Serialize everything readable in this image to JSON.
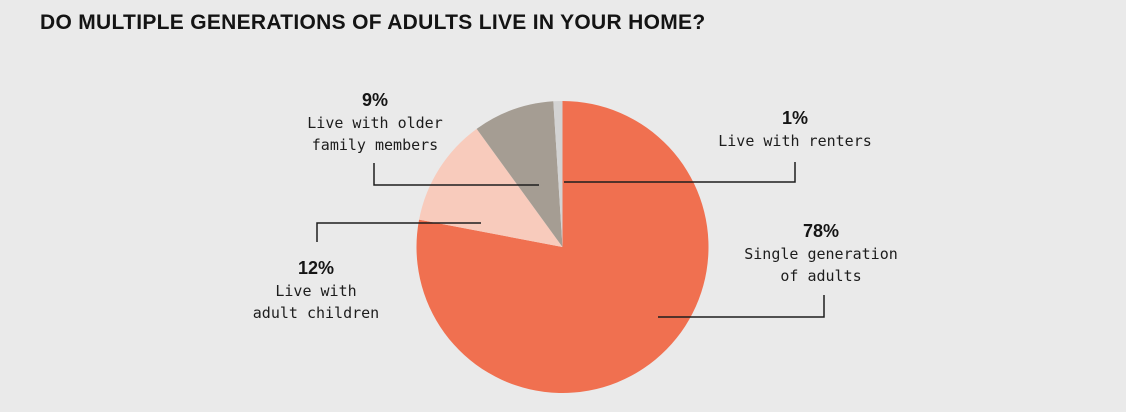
{
  "title": "DO MULTIPLE GENERATIONS OF ADULTS LIVE IN YOUR HOME?",
  "colors": {
    "background": "#EAEAEA",
    "title_text": "#141414",
    "label_text": "#1D1D1D",
    "callout_line": "#1E1E1E"
  },
  "chart_data": {
    "type": "pie",
    "title": "DO MULTIPLE GENERATIONS OF ADULTS LIVE IN YOUR HOME?",
    "unit": "percent",
    "start_angle_deg": 0,
    "direction": "clockwise",
    "legend_position": "callout-labels",
    "slices": [
      {
        "id": "single-generation",
        "label": "Single generation of adults",
        "value": 78,
        "color": "#F07050"
      },
      {
        "id": "adult-children",
        "label": "Live with adult children",
        "value": 12,
        "color": "#F8CBBC"
      },
      {
        "id": "older-family",
        "label": "Live with older family members",
        "value": 9,
        "color": "#A59D93"
      },
      {
        "id": "renters",
        "label": "Live with renters",
        "value": 1,
        "color": "#D3D3D3"
      }
    ]
  },
  "callouts": {
    "older_family": {
      "pct": "9%",
      "lines": [
        "Live with older",
        "family members"
      ]
    },
    "renters": {
      "pct": "1%",
      "lines": [
        "Live with renters"
      ]
    },
    "adult_children": {
      "pct": "12%",
      "lines": [
        "Live with",
        "adult children"
      ]
    },
    "single_generation": {
      "pct": "78%",
      "lines": [
        "Single generation",
        "of adults"
      ]
    }
  }
}
